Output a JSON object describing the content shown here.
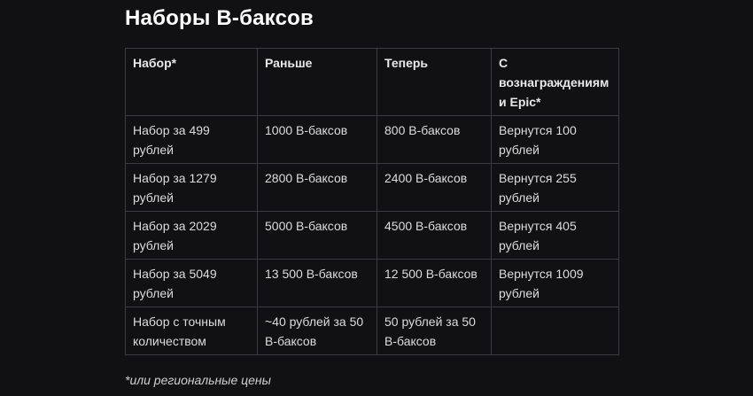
{
  "title": "Наборы В-баксов",
  "table": {
    "headers": [
      "Набор*",
      "Раньше",
      "Теперь",
      "С вознаграждениями Epic*"
    ],
    "rows": [
      [
        "Набор за 499 рублей",
        "1000 В-баксов",
        "800 В-баксов",
        "Вернутся 100 рублей"
      ],
      [
        "Набор за 1279 рублей",
        "2800 В-баксов",
        "2400 В-баксов",
        "Вернутся 255 рублей"
      ],
      [
        "Набор за 2029 рублей",
        "5000 В-баксов",
        "4500 В-баксов",
        "Вернутся 405 рублей"
      ],
      [
        "Набор за 5049 рублей",
        "13 500 В-баксов",
        "12 500 В-баксов",
        "Вернутся 1009 рублей"
      ],
      [
        "Набор с точным количеством",
        "~40 рублей за 50 В-баксов",
        "50 рублей за 50 В-баксов",
        ""
      ]
    ]
  },
  "footnote": "*или региональные цены"
}
